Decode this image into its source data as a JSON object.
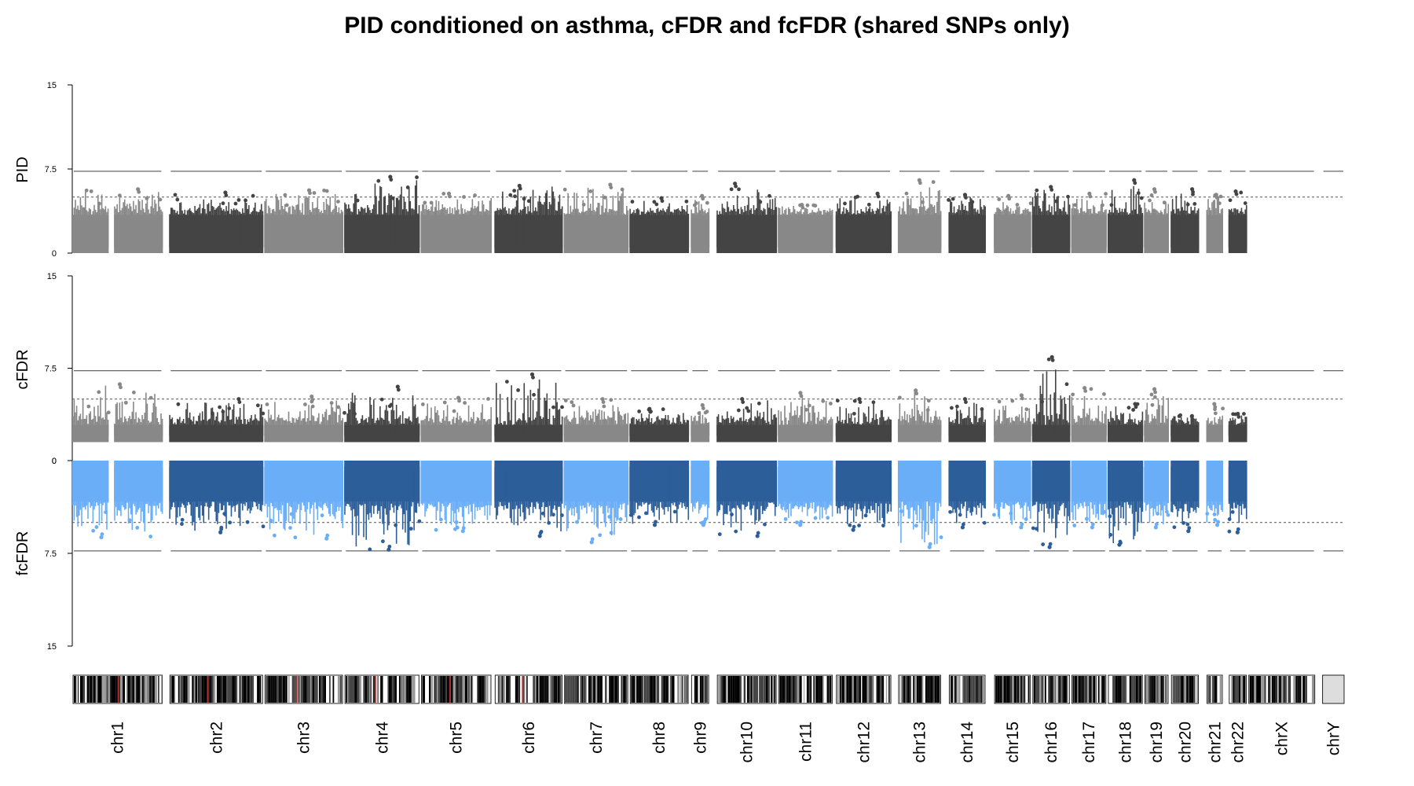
{
  "chart_data": {
    "type": "scatter",
    "title": "PID conditioned on asthma, cFDR and fcFDR (shared SNPs only)",
    "panels": [
      {
        "name": "PID",
        "ylim": [
          0,
          15
        ],
        "yticks": [
          "15",
          "7.5",
          "0"
        ],
        "direction": "up",
        "min_value": 0,
        "threshold_solid": 7.3,
        "threshold_dashed": 5
      },
      {
        "name": "cFDR",
        "ylim": [
          0,
          15
        ],
        "yticks": [
          "15",
          "7.5",
          "0"
        ],
        "direction": "up",
        "min_value": 1.5,
        "threshold_solid": 7.3,
        "threshold_dashed": 5
      },
      {
        "name": "fcFDR",
        "ylim": [
          0,
          15
        ],
        "yticks": [
          "0",
          "7.5",
          "15"
        ],
        "direction": "down",
        "min_value": 0,
        "threshold_solid": 7.3,
        "threshold_dashed": 5
      }
    ],
    "chromosomes": [
      {
        "label": "chr1",
        "start": 0,
        "end": 10.2,
        "gap_at": 4.4,
        "pid_max": 5.7,
        "cfdr_max": 6.2,
        "fcfdr_max": 6.2
      },
      {
        "label": "chr2",
        "start": 10.9,
        "end": 21.5,
        "pid_max": 5.4,
        "cfdr_max": 5.0,
        "fcfdr_max": 5.8
      },
      {
        "label": "chr3",
        "start": 21.6,
        "end": 30.5,
        "pid_max": 5.6,
        "cfdr_max": 5.2,
        "fcfdr_max": 6.3
      },
      {
        "label": "chr4",
        "start": 30.6,
        "end": 39.1,
        "pid_max": 6.8,
        "cfdr_max": 6.0,
        "fcfdr_max": 7.2
      },
      {
        "label": "chr5",
        "start": 39.2,
        "end": 47.2,
        "pid_max": 5.3,
        "cfdr_max": 5.1,
        "fcfdr_max": 5.7
      },
      {
        "label": "chr6",
        "start": 47.5,
        "end": 55.2,
        "pid_max": 6.0,
        "cfdr_max": 7.0,
        "fcfdr_max": 6.1
      },
      {
        "label": "chr7",
        "start": 55.3,
        "end": 62.6,
        "pid_max": 6.1,
        "cfdr_max": 5.0,
        "fcfdr_max": 6.6
      },
      {
        "label": "chr8",
        "start": 62.7,
        "end": 69.4,
        "pid_max": 4.9,
        "cfdr_max": 4.2,
        "fcfdr_max": 5.2
      },
      {
        "label": "chr9",
        "start": 69.6,
        "end": 71.7,
        "pid_max": 5.1,
        "cfdr_max": 4.5,
        "fcfdr_max": 5.2
      },
      {
        "label": "chr10",
        "start": 72.5,
        "end": 79.3,
        "pid_max": 6.2,
        "cfdr_max": 5.0,
        "fcfdr_max": 6.1
      },
      {
        "label": "chr11",
        "start": 79.4,
        "end": 85.6,
        "pid_max": 4.3,
        "cfdr_max": 5.5,
        "fcfdr_max": 5.2
      },
      {
        "label": "chr12",
        "start": 85.9,
        "end": 92.2,
        "pid_max": 5.3,
        "cfdr_max": 5.0,
        "fcfdr_max": 5.6
      },
      {
        "label": "chr13",
        "start": 92.9,
        "end": 97.8,
        "pid_max": 6.5,
        "cfdr_max": 5.7,
        "fcfdr_max": 7.0
      },
      {
        "label": "chr14",
        "start": 98.6,
        "end": 102.8,
        "pid_max": 5.2,
        "cfdr_max": 5.0,
        "fcfdr_max": 5.4
      },
      {
        "label": "chr15",
        "start": 103.7,
        "end": 107.9,
        "pid_max": 5.1,
        "cfdr_max": 5.3,
        "fcfdr_max": 5.4
      },
      {
        "label": "chr16",
        "start": 108.0,
        "end": 112.3,
        "pid_max": 5.9,
        "cfdr_max": 8.4,
        "fcfdr_max": 7.0
      },
      {
        "label": "chr17",
        "start": 112.4,
        "end": 116.4,
        "pid_max": 5.3,
        "cfdr_max": 5.9,
        "fcfdr_max": 5.4
      },
      {
        "label": "chr18",
        "start": 116.5,
        "end": 120.5,
        "pid_max": 6.5,
        "cfdr_max": 4.6,
        "fcfdr_max": 6.8
      },
      {
        "label": "chr19",
        "start": 120.6,
        "end": 123.4,
        "pid_max": 5.7,
        "cfdr_max": 5.8,
        "fcfdr_max": 5.4
      },
      {
        "label": "chr20",
        "start": 123.6,
        "end": 126.8,
        "pid_max": 5.7,
        "cfdr_max": 3.6,
        "fcfdr_max": 5.7
      },
      {
        "label": "chr21",
        "start": 127.6,
        "end": 129.5,
        "pid_max": 5.2,
        "cfdr_max": 4.6,
        "fcfdr_max": 5.2
      },
      {
        "label": "chr22",
        "start": 130.1,
        "end": 132.2,
        "pid_max": 5.5,
        "cfdr_max": 3.8,
        "fcfdr_max": 5.8
      },
      {
        "label": "chrX",
        "start": 132.3,
        "end": 139.9,
        "pid_max": null,
        "cfdr_max": null,
        "fcfdr_max": null
      },
      {
        "label": "chrY",
        "start": 140.6,
        "end": 143.2,
        "pid_max": null,
        "cfdr_max": null,
        "fcfdr_max": null
      }
    ],
    "colors": {
      "grey_light": "#888888",
      "grey_dark": "#444444",
      "blue_light": "#6aaef8",
      "blue_dark": "#2c5e9a",
      "threshold_line": "#666666",
      "centromere": "#b0312f"
    },
    "grid": false
  }
}
